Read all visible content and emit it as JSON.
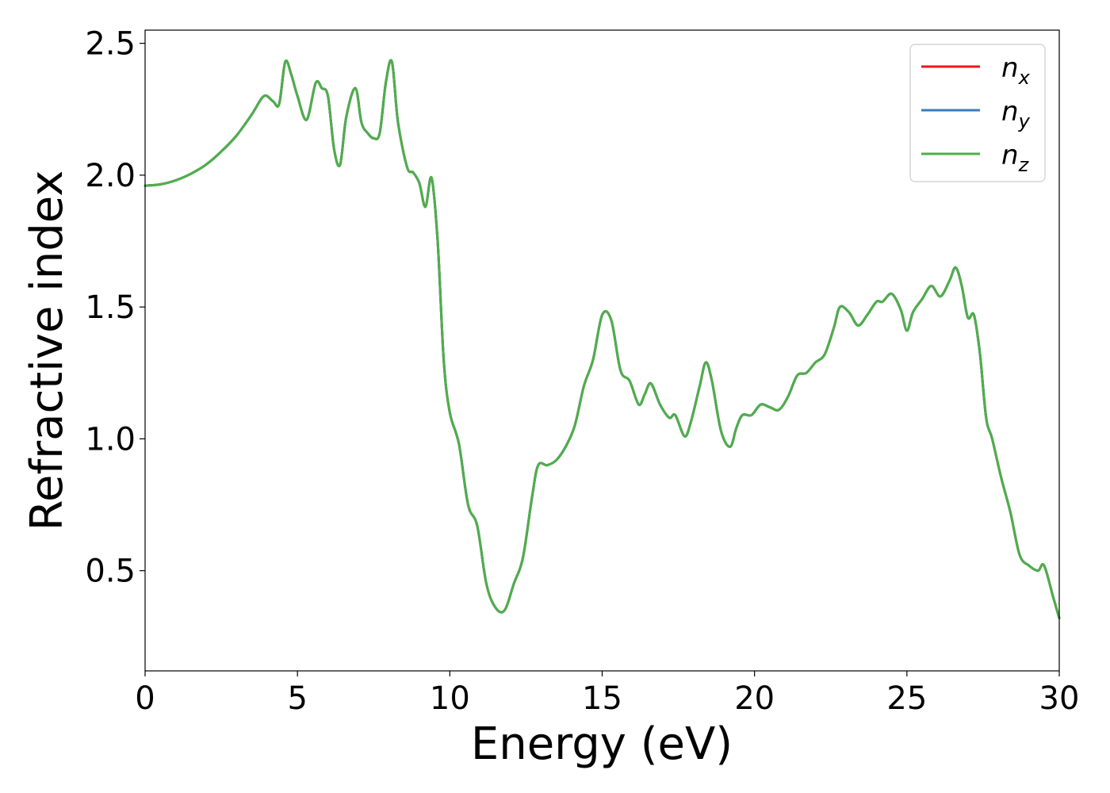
{
  "chart_data": {
    "type": "line",
    "title": "",
    "xlabel": "Energy (eV)",
    "ylabel": "Refractive index",
    "xlim": [
      0,
      30
    ],
    "ylim": [
      0.12,
      2.55
    ],
    "xticks": [
      0,
      5,
      10,
      15,
      20,
      25,
      30
    ],
    "xtick_labels": [
      "0",
      "5",
      "10",
      "15",
      "20",
      "25",
      "30"
    ],
    "yticks": [
      0.5,
      1.0,
      1.5,
      2.0,
      2.5
    ],
    "ytick_labels": [
      "0.5",
      "1.0",
      "1.5",
      "2.0",
      "2.5"
    ],
    "grid": false,
    "legend_position": "top-right",
    "x": [
      0,
      0.5,
      1.0,
      1.5,
      2.0,
      2.5,
      3.0,
      3.5,
      3.9,
      4.2,
      4.4,
      4.6,
      4.8,
      5.0,
      5.3,
      5.6,
      5.8,
      6.0,
      6.2,
      6.4,
      6.6,
      6.9,
      7.1,
      7.3,
      7.5,
      7.7,
      7.9,
      8.1,
      8.3,
      8.6,
      8.8,
      9.0,
      9.2,
      9.4,
      9.6,
      9.8,
      10.0,
      10.3,
      10.6,
      10.9,
      11.2,
      11.5,
      11.8,
      12.1,
      12.4,
      12.7,
      12.9,
      13.2,
      13.5,
      13.8,
      14.1,
      14.4,
      14.7,
      15.0,
      15.3,
      15.6,
      15.9,
      16.2,
      16.4,
      16.6,
      16.9,
      17.2,
      17.4,
      17.7,
      17.9,
      18.2,
      18.4,
      18.6,
      18.9,
      19.2,
      19.4,
      19.6,
      19.9,
      20.2,
      20.5,
      20.8,
      21.1,
      21.4,
      21.7,
      22.0,
      22.3,
      22.6,
      22.8,
      23.1,
      23.4,
      23.7,
      24.0,
      24.2,
      24.5,
      24.8,
      25.0,
      25.2,
      25.5,
      25.8,
      26.1,
      26.4,
      26.6,
      26.8,
      27.0,
      27.2,
      27.4,
      27.6,
      27.8,
      28.1,
      28.4,
      28.7,
      29.0,
      29.3,
      29.5,
      29.8,
      30.0
    ],
    "series": [
      {
        "name": "n_x",
        "color": "#e41a1c",
        "values": [
          1.96,
          1.965,
          1.98,
          2.005,
          2.04,
          2.09,
          2.15,
          2.23,
          2.3,
          2.28,
          2.27,
          2.43,
          2.38,
          2.3,
          2.21,
          2.35,
          2.33,
          2.3,
          2.1,
          2.04,
          2.22,
          2.33,
          2.2,
          2.16,
          2.14,
          2.16,
          2.35,
          2.43,
          2.2,
          2.03,
          2.01,
          1.97,
          1.88,
          1.99,
          1.75,
          1.3,
          1.1,
          0.98,
          0.75,
          0.67,
          0.45,
          0.36,
          0.35,
          0.45,
          0.55,
          0.78,
          0.9,
          0.9,
          0.92,
          0.97,
          1.05,
          1.2,
          1.3,
          1.47,
          1.45,
          1.26,
          1.22,
          1.13,
          1.17,
          1.21,
          1.13,
          1.08,
          1.09,
          1.01,
          1.06,
          1.2,
          1.29,
          1.22,
          1.03,
          0.97,
          1.04,
          1.09,
          1.09,
          1.13,
          1.12,
          1.11,
          1.16,
          1.24,
          1.25,
          1.29,
          1.32,
          1.42,
          1.5,
          1.48,
          1.43,
          1.47,
          1.52,
          1.52,
          1.55,
          1.49,
          1.41,
          1.48,
          1.53,
          1.58,
          1.54,
          1.6,
          1.65,
          1.58,
          1.46,
          1.47,
          1.32,
          1.08,
          1.0,
          0.85,
          0.72,
          0.56,
          0.52,
          0.5,
          0.52,
          0.4,
          0.32
        ]
      },
      {
        "name": "n_y",
        "color": "#377eb8",
        "values": [
          1.96,
          1.965,
          1.98,
          2.005,
          2.04,
          2.09,
          2.15,
          2.23,
          2.3,
          2.28,
          2.27,
          2.43,
          2.38,
          2.3,
          2.21,
          2.35,
          2.33,
          2.3,
          2.1,
          2.04,
          2.22,
          2.33,
          2.2,
          2.16,
          2.14,
          2.16,
          2.35,
          2.43,
          2.2,
          2.03,
          2.01,
          1.97,
          1.88,
          1.99,
          1.75,
          1.3,
          1.1,
          0.98,
          0.75,
          0.67,
          0.45,
          0.36,
          0.35,
          0.45,
          0.55,
          0.78,
          0.9,
          0.9,
          0.92,
          0.97,
          1.05,
          1.2,
          1.3,
          1.47,
          1.45,
          1.26,
          1.22,
          1.13,
          1.17,
          1.21,
          1.13,
          1.08,
          1.09,
          1.01,
          1.06,
          1.2,
          1.29,
          1.22,
          1.03,
          0.97,
          1.04,
          1.09,
          1.09,
          1.13,
          1.12,
          1.11,
          1.16,
          1.24,
          1.25,
          1.29,
          1.32,
          1.42,
          1.5,
          1.48,
          1.43,
          1.47,
          1.52,
          1.52,
          1.55,
          1.49,
          1.41,
          1.48,
          1.53,
          1.58,
          1.54,
          1.6,
          1.65,
          1.58,
          1.46,
          1.47,
          1.32,
          1.08,
          1.0,
          0.85,
          0.72,
          0.56,
          0.52,
          0.5,
          0.52,
          0.4,
          0.32
        ]
      },
      {
        "name": "n_z",
        "color": "#4daf4a",
        "values": [
          1.96,
          1.965,
          1.98,
          2.005,
          2.04,
          2.09,
          2.15,
          2.23,
          2.3,
          2.28,
          2.27,
          2.43,
          2.38,
          2.3,
          2.21,
          2.35,
          2.33,
          2.3,
          2.1,
          2.04,
          2.22,
          2.33,
          2.2,
          2.16,
          2.14,
          2.16,
          2.35,
          2.43,
          2.2,
          2.03,
          2.01,
          1.97,
          1.88,
          1.99,
          1.75,
          1.3,
          1.1,
          0.98,
          0.75,
          0.67,
          0.45,
          0.36,
          0.35,
          0.45,
          0.55,
          0.78,
          0.9,
          0.9,
          0.92,
          0.97,
          1.05,
          1.2,
          1.3,
          1.47,
          1.45,
          1.26,
          1.22,
          1.13,
          1.17,
          1.21,
          1.13,
          1.08,
          1.09,
          1.01,
          1.06,
          1.2,
          1.29,
          1.22,
          1.03,
          0.97,
          1.04,
          1.09,
          1.09,
          1.13,
          1.12,
          1.11,
          1.16,
          1.24,
          1.25,
          1.29,
          1.32,
          1.42,
          1.5,
          1.48,
          1.43,
          1.47,
          1.52,
          1.52,
          1.55,
          1.49,
          1.41,
          1.48,
          1.53,
          1.58,
          1.54,
          1.6,
          1.65,
          1.58,
          1.46,
          1.47,
          1.32,
          1.08,
          1.0,
          0.85,
          0.72,
          0.56,
          0.52,
          0.5,
          0.52,
          0.4,
          0.32
        ]
      }
    ],
    "legend": [
      {
        "base": "n",
        "sub": "x",
        "color": "#e41a1c"
      },
      {
        "base": "n",
        "sub": "y",
        "color": "#377eb8"
      },
      {
        "base": "n",
        "sub": "z",
        "color": "#4daf4a"
      }
    ]
  }
}
